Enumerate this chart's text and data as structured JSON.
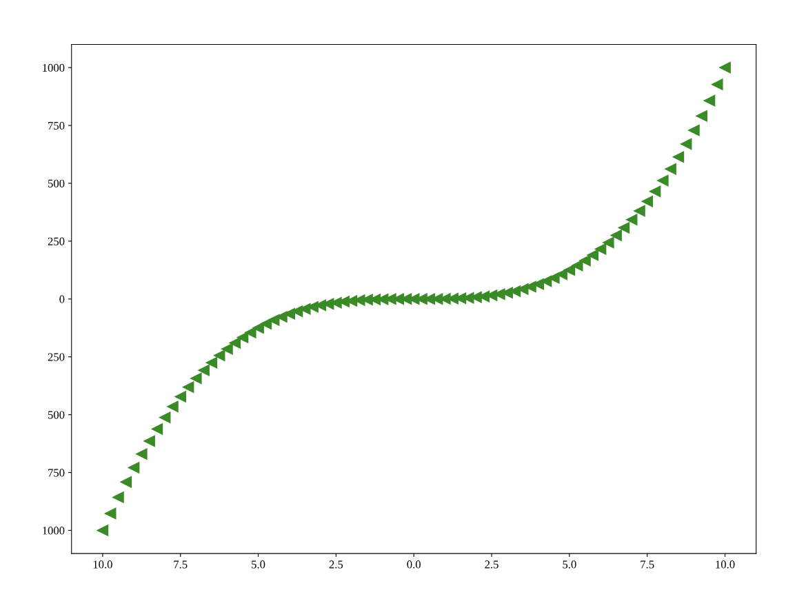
{
  "chart_data": {
    "type": "scatter",
    "marker": "triangle",
    "grid": false,
    "legend": false,
    "x": [
      -10,
      -9.75,
      -9.5,
      -9.25,
      -9,
      -8.75,
      -8.5,
      -8.25,
      -8,
      -7.75,
      -7.5,
      -7.25,
      -7,
      -6.75,
      -6.5,
      -6.25,
      -6,
      -5.75,
      -5.5,
      -5.25,
      -5,
      -4.75,
      -4.5,
      -4.25,
      -4,
      -3.75,
      -3.5,
      -3.25,
      -3,
      -2.75,
      -2.5,
      -2.25,
      -2,
      -1.75,
      -1.5,
      -1.25,
      -1,
      -0.75,
      -0.5,
      -0.25,
      0,
      0.25,
      0.5,
      0.75,
      1,
      1.25,
      1.5,
      1.75,
      2,
      2.25,
      2.5,
      2.75,
      3,
      3.25,
      3.5,
      3.75,
      4,
      4.25,
      4.5,
      4.75,
      5,
      5.25,
      5.5,
      5.75,
      6,
      6.25,
      6.5,
      6.75,
      7,
      7.25,
      7.5,
      7.75,
      8,
      8.25,
      8.5,
      8.75,
      9,
      9.25,
      9.5,
      9.75,
      10
    ],
    "series": [
      {
        "color": "#3a8a27",
        "values": [
          -1000,
          -927,
          -857,
          -791,
          -729,
          -670,
          -614,
          -562,
          -512,
          -465,
          -422,
          -381,
          -343,
          -308,
          -275,
          -244,
          -216,
          -190,
          -166,
          -145,
          -125,
          -107,
          -91,
          -77,
          -64,
          -53,
          -43,
          -34,
          -27,
          -21,
          -16,
          -11,
          -8,
          -5,
          -3,
          -2,
          -1,
          0,
          0,
          0,
          0,
          0,
          0,
          0,
          1,
          2,
          3,
          5,
          8,
          11,
          16,
          21,
          27,
          34,
          43,
          53,
          64,
          77,
          91,
          107,
          125,
          145,
          166,
          190,
          216,
          244,
          275,
          308,
          343,
          381,
          422,
          465,
          512,
          562,
          614,
          670,
          729,
          791,
          857,
          927,
          1000
        ]
      }
    ],
    "xlim": [
      -11,
      11
    ],
    "ylim": [
      -1100,
      1100
    ],
    "xticks": [
      {
        "value": -10,
        "label": "10.0"
      },
      {
        "value": -7.5,
        "label": "7.5"
      },
      {
        "value": -5,
        "label": "5.0"
      },
      {
        "value": -2.5,
        "label": "2.5"
      },
      {
        "value": 0,
        "label": "0.0"
      },
      {
        "value": 2.5,
        "label": "2.5"
      },
      {
        "value": 5,
        "label": "5.0"
      },
      {
        "value": 7.5,
        "label": "7.5"
      },
      {
        "value": 10,
        "label": "10.0"
      }
    ],
    "yticks": [
      {
        "value": -1000,
        "label": "1000"
      },
      {
        "value": -750,
        "label": "750"
      },
      {
        "value": -500,
        "label": "500"
      },
      {
        "value": -250,
        "label": "250"
      },
      0,
      250,
      500,
      750,
      1000
    ]
  }
}
